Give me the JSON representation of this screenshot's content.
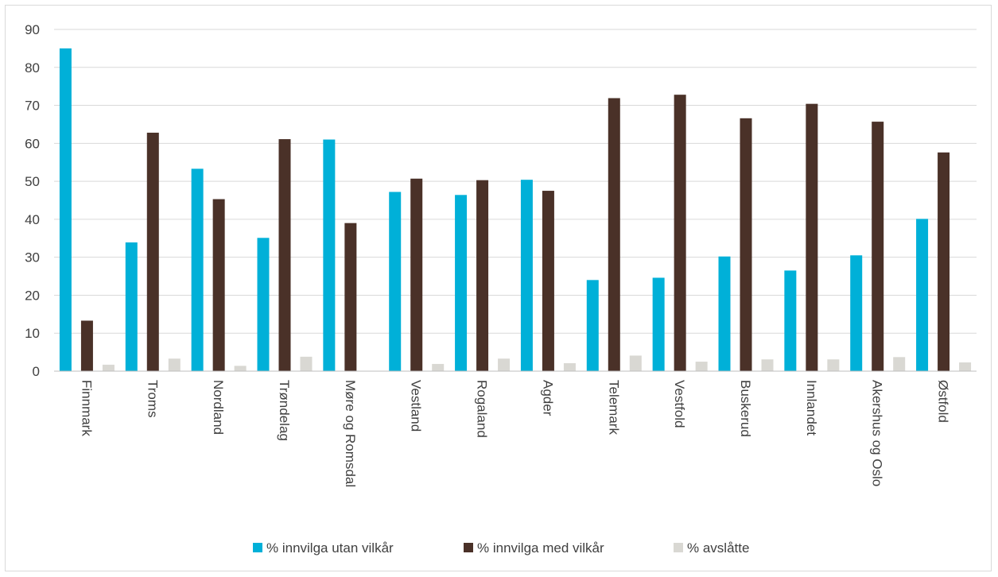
{
  "chart_data": {
    "type": "bar",
    "title": "",
    "xlabel": "",
    "ylabel": "",
    "ylim": [
      0,
      90
    ],
    "yticks": [
      0,
      10,
      20,
      30,
      40,
      50,
      60,
      70,
      80,
      90
    ],
    "grid": true,
    "legend_position": "bottom",
    "categories": [
      "Finnmark",
      "Troms",
      "Nordland",
      "Trøndelag",
      "Møre og Romsdal",
      "Vestland",
      "Rogaland",
      "Agder",
      "Telemark",
      "Vestfold",
      "Buskerud",
      "Innlandet",
      "Akershus og Oslo",
      "Østfold"
    ],
    "series": [
      {
        "name": "% innvilga utan vilkår",
        "color": "#00b0d8",
        "values": [
          85,
          33.9,
          53.3,
          35.1,
          61,
          47.2,
          46.4,
          50.4,
          24,
          24.6,
          30.2,
          26.5,
          30.5,
          40.1
        ]
      },
      {
        "name": "% innvilga med vilkår",
        "color": "#4a3128",
        "values": [
          13.3,
          62.8,
          45.3,
          61.1,
          39,
          50.7,
          50.3,
          47.5,
          71.9,
          72.8,
          66.6,
          70.4,
          65.7,
          57.6
        ]
      },
      {
        "name": "% avslåtte",
        "color": "#d9d8d3",
        "values": [
          1.7,
          3.3,
          1.4,
          3.8,
          0,
          1.9,
          3.3,
          2.1,
          4.1,
          2.5,
          3.1,
          3.1,
          3.7,
          2.3
        ]
      }
    ]
  }
}
